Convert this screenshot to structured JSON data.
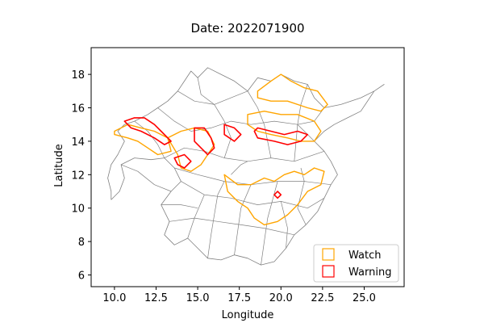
{
  "chart_data": {
    "type": "map",
    "title": "Date: 2022071900",
    "xlabel": "Longitude",
    "ylabel": "Latitude",
    "xlim": [
      8.6,
      27.4
    ],
    "ylim": [
      5.3,
      19.6
    ],
    "x_ticks": [
      {
        "value": 10.0,
        "label": "10.0"
      },
      {
        "value": 12.5,
        "label": "12.5"
      },
      {
        "value": 15.0,
        "label": "15.0"
      },
      {
        "value": 17.5,
        "label": "17.5"
      },
      {
        "value": 20.0,
        "label": "20.0"
      },
      {
        "value": 22.5,
        "label": "22.5"
      },
      {
        "value": 25.0,
        "label": "25.0"
      }
    ],
    "y_ticks": [
      {
        "value": 6,
        "label": "6"
      },
      {
        "value": 8,
        "label": "8"
      },
      {
        "value": 10,
        "label": "10"
      },
      {
        "value": 12,
        "label": "12"
      },
      {
        "value": 14,
        "label": "14"
      },
      {
        "value": 16,
        "label": "16"
      },
      {
        "value": 18,
        "label": "18"
      }
    ],
    "legend": {
      "placement": "lower-right",
      "entries": [
        {
          "label": "Watch",
          "color": "#ffa500"
        },
        {
          "label": "Warning",
          "color": "#ff0000"
        }
      ]
    },
    "basin_color": "#808080",
    "basin_outline": [
      [
        9.8,
        10.5
      ],
      [
        10.3,
        11.0
      ],
      [
        10.6,
        11.8
      ],
      [
        10.4,
        12.6
      ],
      [
        11.2,
        13.0
      ],
      [
        12.2,
        12.9
      ],
      [
        13.0,
        13.0
      ],
      [
        13.6,
        12.4
      ],
      [
        14.0,
        11.6
      ],
      [
        13.4,
        11.0
      ],
      [
        12.8,
        10.2
      ],
      [
        13.3,
        9.2
      ],
      [
        13.0,
        8.4
      ],
      [
        13.6,
        7.8
      ],
      [
        14.4,
        8.2
      ],
      [
        15.0,
        7.6
      ],
      [
        15.6,
        7.0
      ],
      [
        16.4,
        6.9
      ],
      [
        17.2,
        7.2
      ],
      [
        18.0,
        7.0
      ],
      [
        18.8,
        6.6
      ],
      [
        19.6,
        6.8
      ],
      [
        20.3,
        7.6
      ],
      [
        20.8,
        8.4
      ],
      [
        21.5,
        9.0
      ],
      [
        22.2,
        9.8
      ],
      [
        22.6,
        10.6
      ],
      [
        23.0,
        11.4
      ],
      [
        23.4,
        12.0
      ],
      [
        23.0,
        12.8
      ],
      [
        22.6,
        13.4
      ],
      [
        22.0,
        14.0
      ],
      [
        22.6,
        14.6
      ],
      [
        23.2,
        15.0
      ],
      [
        24.0,
        15.4
      ],
      [
        24.8,
        15.8
      ],
      [
        25.6,
        17.0
      ],
      [
        26.2,
        17.4
      ],
      [
        25.6,
        17.0
      ],
      [
        24.8,
        16.6
      ],
      [
        23.6,
        16.2
      ],
      [
        22.6,
        16.0
      ],
      [
        22.0,
        16.6
      ],
      [
        21.6,
        17.4
      ],
      [
        20.8,
        17.6
      ],
      [
        20.0,
        18.0
      ],
      [
        19.4,
        17.6
      ],
      [
        18.6,
        17.8
      ],
      [
        18.0,
        17.0
      ],
      [
        17.2,
        17.6
      ],
      [
        16.4,
        18.0
      ],
      [
        15.6,
        18.4
      ],
      [
        15.0,
        17.8
      ],
      [
        14.6,
        18.2
      ],
      [
        14.2,
        17.6
      ],
      [
        13.8,
        17.0
      ],
      [
        13.2,
        16.4
      ],
      [
        12.6,
        16.0
      ],
      [
        12.0,
        15.6
      ],
      [
        11.2,
        15.2
      ],
      [
        10.6,
        15.0
      ],
      [
        10.2,
        14.6
      ],
      [
        10.6,
        14.0
      ],
      [
        10.2,
        13.2
      ],
      [
        9.8,
        12.6
      ],
      [
        9.6,
        11.8
      ],
      [
        9.8,
        11.0
      ],
      [
        9.8,
        10.5
      ]
    ],
    "basin_boundaries": [
      [
        [
          13.0,
          13.0
        ],
        [
          14.2,
          13.6
        ],
        [
          15.4,
          13.4
        ],
        [
          16.6,
          13.0
        ],
        [
          18.0,
          12.8
        ],
        [
          19.4,
          13.0
        ],
        [
          20.8,
          12.8
        ],
        [
          22.6,
          13.4
        ]
      ],
      [
        [
          13.6,
          12.4
        ],
        [
          15.0,
          12.0
        ],
        [
          16.6,
          11.6
        ],
        [
          18.2,
          11.4
        ],
        [
          19.8,
          11.6
        ],
        [
          21.4,
          11.6
        ],
        [
          23.0,
          11.4
        ]
      ],
      [
        [
          14.0,
          11.6
        ],
        [
          15.4,
          10.8
        ],
        [
          17.0,
          10.6
        ],
        [
          18.6,
          10.2
        ],
        [
          20.0,
          10.4
        ],
        [
          21.6,
          10.0
        ],
        [
          22.6,
          10.6
        ]
      ],
      [
        [
          13.3,
          9.2
        ],
        [
          14.8,
          9.4
        ],
        [
          16.2,
          9.2
        ],
        [
          17.6,
          9.0
        ],
        [
          19.0,
          8.8
        ],
        [
          20.8,
          8.4
        ]
      ],
      [
        [
          15.6,
          7.0
        ],
        [
          15.8,
          8.4
        ],
        [
          16.0,
          9.6
        ],
        [
          16.2,
          10.8
        ],
        [
          16.6,
          11.6
        ]
      ],
      [
        [
          17.2,
          7.2
        ],
        [
          17.4,
          8.6
        ],
        [
          17.6,
          10.0
        ],
        [
          18.2,
          11.4
        ]
      ],
      [
        [
          18.8,
          6.6
        ],
        [
          19.0,
          8.0
        ],
        [
          19.2,
          9.4
        ],
        [
          19.8,
          11.6
        ]
      ],
      [
        [
          12.6,
          16.0
        ],
        [
          13.6,
          15.2
        ],
        [
          14.6,
          14.6
        ],
        [
          15.8,
          14.8
        ],
        [
          17.0,
          15.2
        ],
        [
          18.2,
          15.0
        ],
        [
          19.6,
          15.2
        ],
        [
          21.0,
          15.0
        ],
        [
          22.0,
          14.0
        ]
      ],
      [
        [
          13.8,
          17.0
        ],
        [
          14.8,
          16.4
        ],
        [
          16.0,
          16.2
        ],
        [
          17.0,
          16.6
        ],
        [
          18.0,
          17.0
        ]
      ],
      [
        [
          15.0,
          17.8
        ],
        [
          15.2,
          16.8
        ],
        [
          16.0,
          16.2
        ]
      ],
      [
        [
          16.0,
          16.2
        ],
        [
          16.6,
          15.2
        ],
        [
          17.0,
          14.2
        ],
        [
          16.6,
          13.0
        ]
      ],
      [
        [
          18.0,
          17.0
        ],
        [
          18.6,
          16.0
        ],
        [
          19.0,
          15.0
        ],
        [
          19.4,
          13.0
        ]
      ],
      [
        [
          21.6,
          17.4
        ],
        [
          21.2,
          16.2
        ],
        [
          21.0,
          15.0
        ],
        [
          20.8,
          12.8
        ]
      ],
      [
        [
          11.2,
          15.2
        ],
        [
          12.0,
          14.6
        ],
        [
          12.6,
          13.8
        ],
        [
          13.0,
          13.0
        ]
      ],
      [
        [
          10.4,
          12.6
        ],
        [
          11.4,
          12.2
        ],
        [
          12.4,
          11.4
        ],
        [
          13.4,
          11.0
        ]
      ],
      [
        [
          14.4,
          8.2
        ],
        [
          14.8,
          9.4
        ],
        [
          15.4,
          10.8
        ]
      ],
      [
        [
          20.3,
          7.6
        ],
        [
          20.4,
          8.8
        ],
        [
          20.0,
          10.4
        ]
      ],
      [
        [
          21.5,
          9.0
        ],
        [
          21.0,
          10.0
        ],
        [
          21.4,
          11.6
        ],
        [
          21.2,
          12.4
        ]
      ],
      [
        [
          12.8,
          10.2
        ],
        [
          14.0,
          10.2
        ],
        [
          15.0,
          10.0
        ]
      ],
      [
        [
          22.6,
          16.0
        ],
        [
          22.0,
          15.2
        ],
        [
          21.0,
          15.0
        ]
      ],
      [
        [
          17.0,
          12.0
        ],
        [
          17.6,
          12.6
        ],
        [
          18.0,
          12.8
        ]
      ]
    ],
    "watch_regions": [
      [
        [
          10.0,
          14.6
        ],
        [
          10.8,
          15.0
        ],
        [
          11.6,
          14.8
        ],
        [
          12.4,
          14.6
        ],
        [
          13.2,
          14.2
        ],
        [
          13.4,
          13.4
        ],
        [
          12.6,
          13.2
        ],
        [
          12.0,
          13.6
        ],
        [
          11.4,
          14.0
        ],
        [
          10.8,
          14.2
        ],
        [
          10.0,
          14.4
        ],
        [
          10.0,
          14.6
        ]
      ],
      [
        [
          13.2,
          14.2
        ],
        [
          14.0,
          14.6
        ],
        [
          14.8,
          14.8
        ],
        [
          15.6,
          14.6
        ],
        [
          16.0,
          13.8
        ],
        [
          15.6,
          13.2
        ],
        [
          15.2,
          12.6
        ],
        [
          14.6,
          12.2
        ],
        [
          14.0,
          12.4
        ],
        [
          13.8,
          13.2
        ],
        [
          13.2,
          14.2
        ]
      ],
      [
        [
          18.6,
          17.0
        ],
        [
          19.4,
          17.6
        ],
        [
          20.0,
          18.0
        ],
        [
          20.6,
          17.6
        ],
        [
          21.4,
          17.2
        ],
        [
          22.2,
          17.0
        ],
        [
          22.8,
          16.2
        ],
        [
          22.4,
          15.8
        ],
        [
          21.6,
          16.0
        ],
        [
          20.4,
          16.4
        ],
        [
          19.4,
          16.4
        ],
        [
          18.6,
          16.6
        ],
        [
          18.6,
          17.0
        ]
      ],
      [
        [
          18.0,
          15.6
        ],
        [
          19.0,
          15.8
        ],
        [
          20.0,
          15.6
        ],
        [
          21.0,
          15.6
        ],
        [
          22.0,
          15.2
        ],
        [
          22.4,
          14.6
        ],
        [
          22.0,
          14.0
        ],
        [
          21.2,
          14.0
        ],
        [
          20.4,
          14.2
        ],
        [
          19.4,
          14.4
        ],
        [
          18.6,
          14.6
        ],
        [
          18.0,
          15.0
        ],
        [
          18.0,
          15.6
        ]
      ],
      [
        [
          16.6,
          12.0
        ],
        [
          17.4,
          11.4
        ],
        [
          18.2,
          11.4
        ],
        [
          19.0,
          11.8
        ],
        [
          19.6,
          11.6
        ],
        [
          20.2,
          12.0
        ],
        [
          20.8,
          12.2
        ],
        [
          21.4,
          12.0
        ],
        [
          22.0,
          12.4
        ],
        [
          22.6,
          12.2
        ],
        [
          22.4,
          11.4
        ],
        [
          21.6,
          11.0
        ],
        [
          21.0,
          10.2
        ],
        [
          20.4,
          9.6
        ],
        [
          19.8,
          9.2
        ],
        [
          19.0,
          9.0
        ],
        [
          18.4,
          9.4
        ],
        [
          18.0,
          10.0
        ],
        [
          17.4,
          10.4
        ],
        [
          16.8,
          11.0
        ],
        [
          16.6,
          12.0
        ]
      ]
    ],
    "warning_regions": [
      [
        [
          10.6,
          15.2
        ],
        [
          11.2,
          15.4
        ],
        [
          11.8,
          15.4
        ],
        [
          12.4,
          15.0
        ],
        [
          12.8,
          14.6
        ],
        [
          13.4,
          14.0
        ],
        [
          13.0,
          13.8
        ],
        [
          12.4,
          14.2
        ],
        [
          11.6,
          14.6
        ],
        [
          11.0,
          14.8
        ],
        [
          10.6,
          15.2
        ]
      ],
      [
        [
          14.8,
          14.8
        ],
        [
          15.4,
          14.8
        ],
        [
          15.8,
          14.2
        ],
        [
          16.0,
          13.6
        ],
        [
          15.6,
          13.2
        ],
        [
          15.2,
          13.6
        ],
        [
          14.8,
          14.0
        ],
        [
          14.8,
          14.8
        ]
      ],
      [
        [
          16.6,
          15.0
        ],
        [
          17.2,
          14.8
        ],
        [
          17.6,
          14.4
        ],
        [
          17.2,
          14.0
        ],
        [
          16.6,
          14.4
        ],
        [
          16.6,
          15.0
        ]
      ],
      [
        [
          18.6,
          14.8
        ],
        [
          19.4,
          14.6
        ],
        [
          20.2,
          14.4
        ],
        [
          21.0,
          14.6
        ],
        [
          21.6,
          14.4
        ],
        [
          21.2,
          14.0
        ],
        [
          20.4,
          13.8
        ],
        [
          19.6,
          14.0
        ],
        [
          18.6,
          14.2
        ],
        [
          18.4,
          14.6
        ],
        [
          18.6,
          14.8
        ]
      ],
      [
        [
          13.6,
          13.0
        ],
        [
          14.2,
          13.2
        ],
        [
          14.6,
          12.8
        ],
        [
          14.2,
          12.4
        ],
        [
          13.8,
          12.6
        ],
        [
          13.6,
          13.0
        ]
      ],
      [
        [
          19.6,
          10.8
        ],
        [
          19.8,
          11.0
        ],
        [
          20.0,
          10.8
        ],
        [
          19.8,
          10.6
        ],
        [
          19.6,
          10.8
        ]
      ]
    ]
  }
}
